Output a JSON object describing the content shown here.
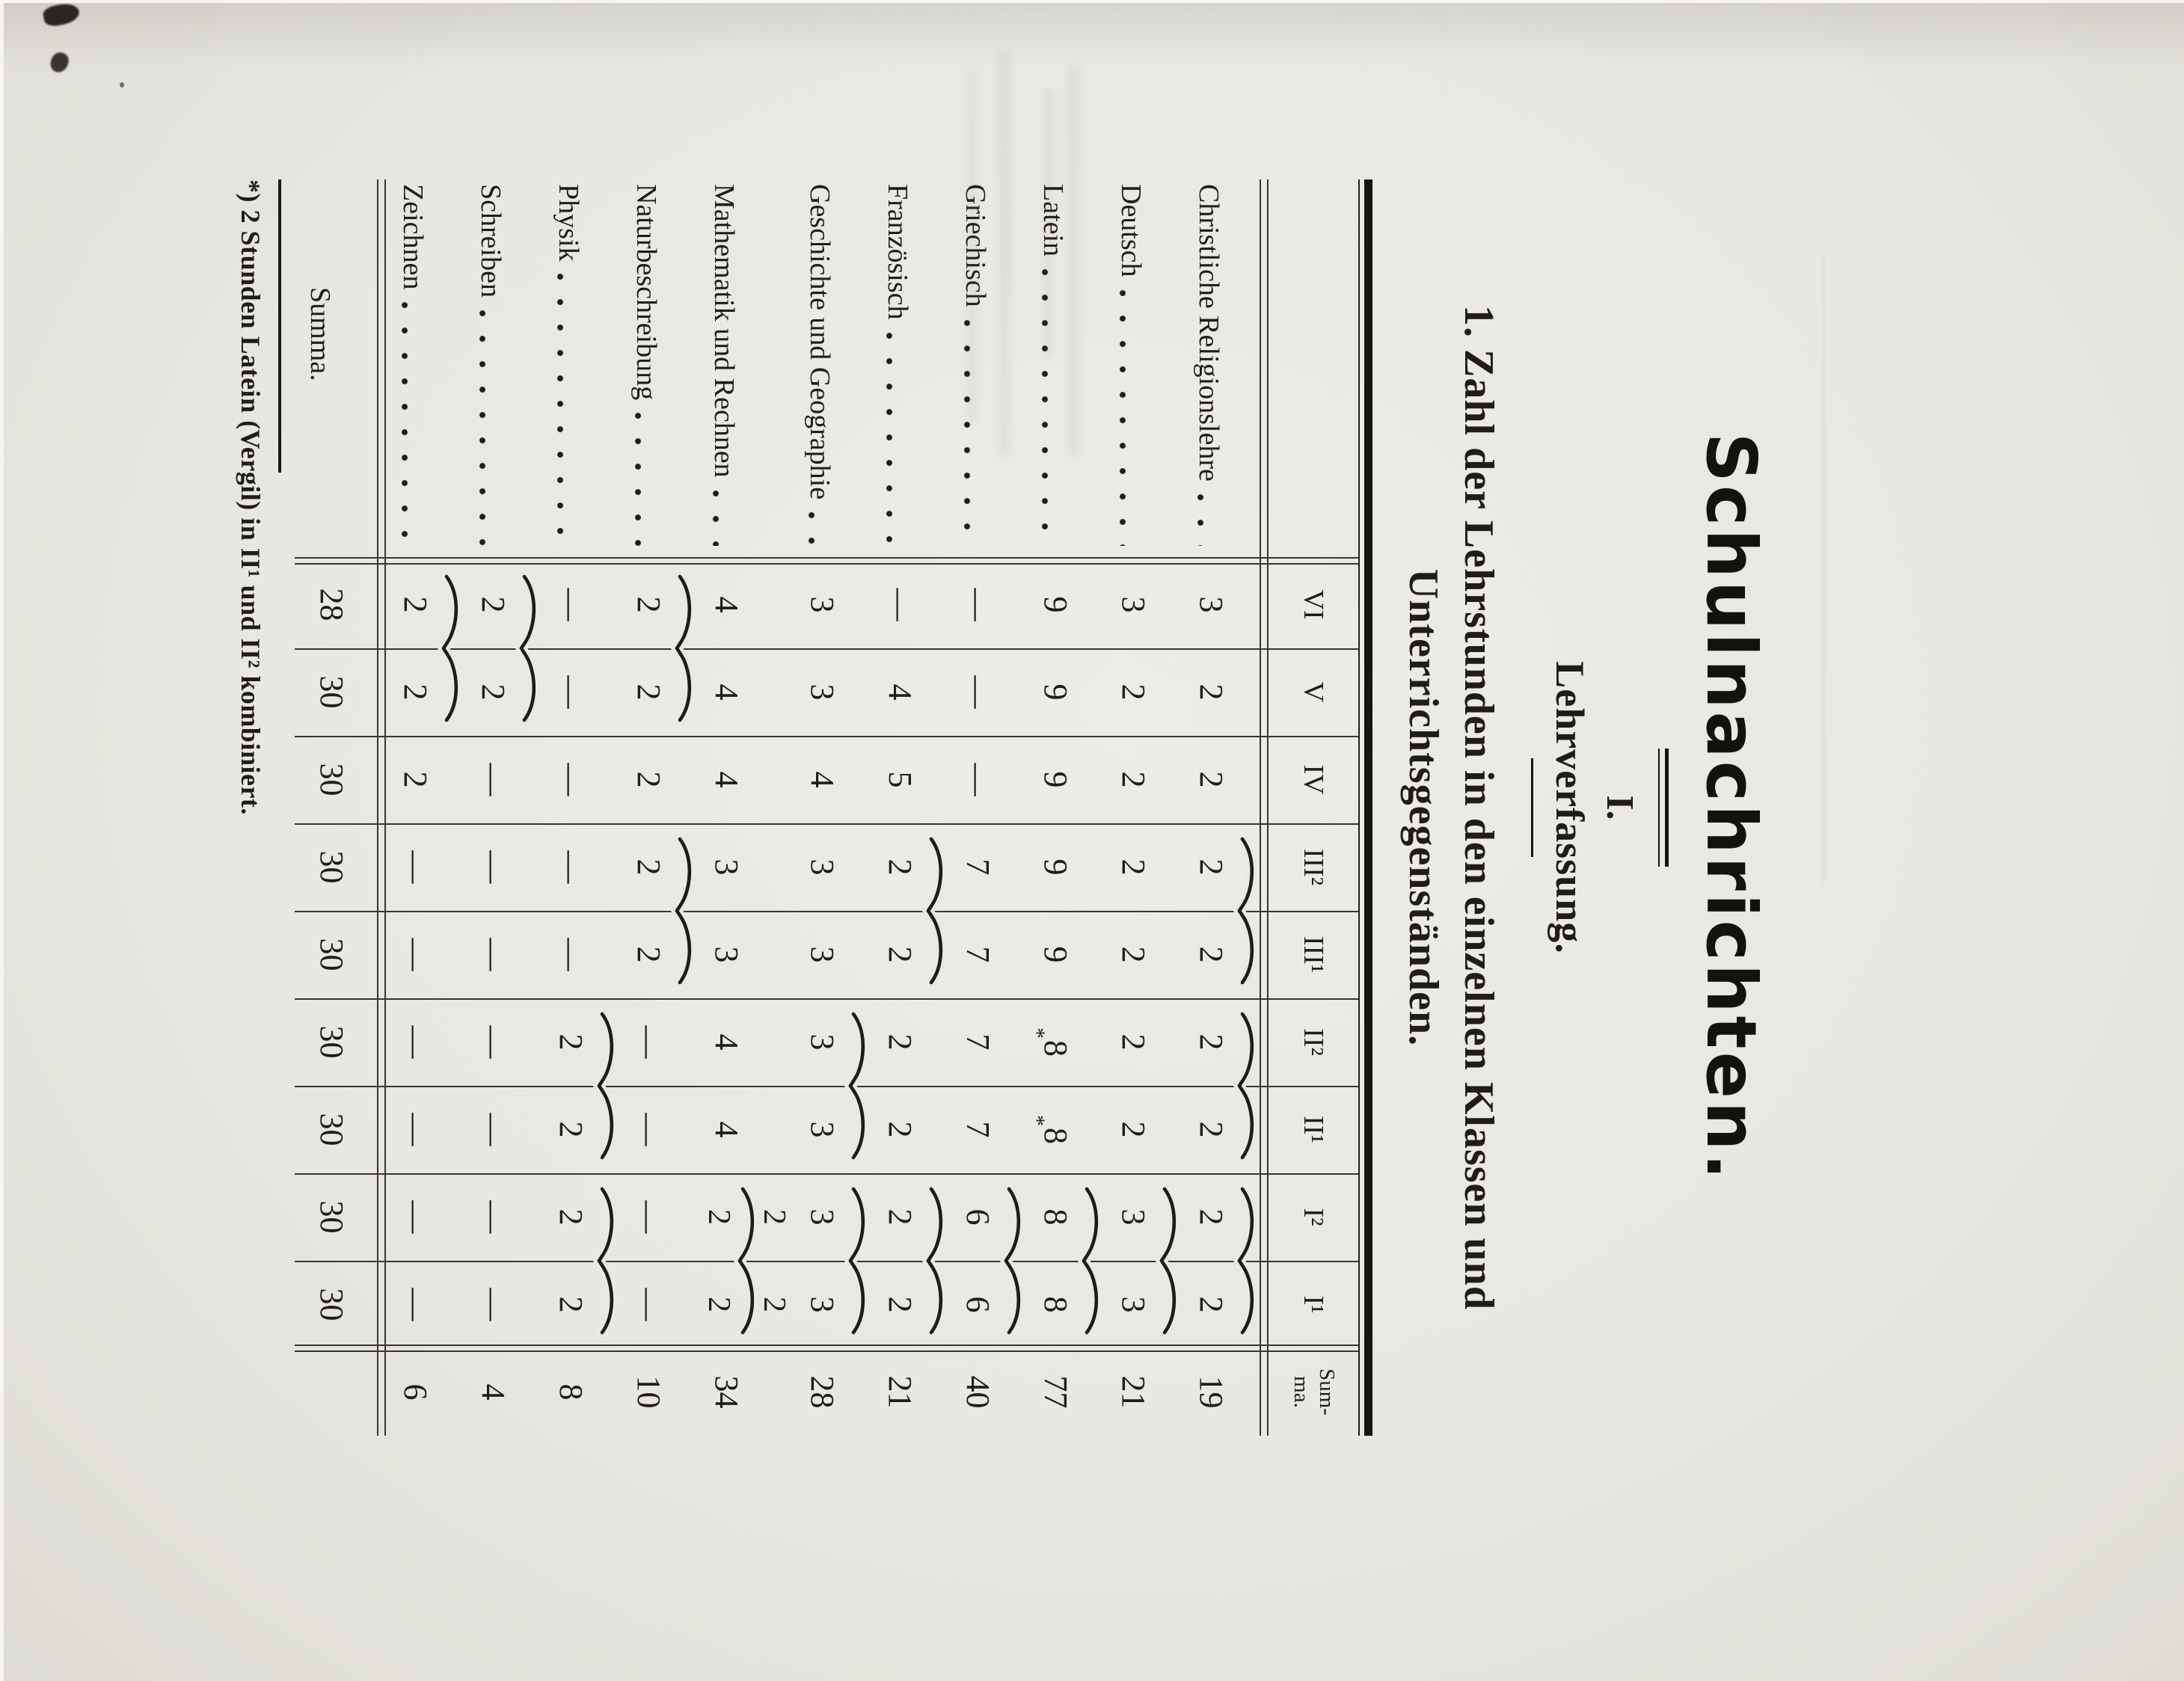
{
  "page": {
    "background_color": "#e8e7e1",
    "ink_color": "#201d17",
    "title": "Schulnachrichten.",
    "section_numeral": "I.",
    "section_title": "Lehrverfassung.",
    "heading_line1": "1. Zahl der Lehrstunden in den einzelnen Klassen und",
    "heading_line2": "Unterrichtsgegenständen.",
    "footnote": "*) 2 Stunden Latein (Vergil) in II¹ und II² kombiniert."
  },
  "table": {
    "class_columns": [
      "VI",
      "V",
      "IV",
      "III²",
      "III¹",
      "II²",
      "II¹",
      "I²",
      "I¹"
    ],
    "sum_column_header": [
      "Sum-",
      "ma."
    ],
    "rows": [
      {
        "label": "Christliche Religionslehre",
        "cells": [
          "3",
          "2",
          "2",
          "2",
          "2",
          "2",
          "2",
          "2",
          "2"
        ],
        "sum": "19",
        "braces": [
          [
            3,
            4
          ],
          [
            5,
            6
          ],
          [
            7,
            8
          ]
        ]
      },
      {
        "label": "Deutsch",
        "cells": [
          "3",
          "2",
          "2",
          "2",
          "2",
          "2",
          "2",
          "3",
          "3"
        ],
        "sum": "21",
        "braces": [
          [
            7,
            8
          ]
        ]
      },
      {
        "label": "Latein",
        "cells": [
          "9",
          "9",
          "9",
          "9",
          "9",
          "*8",
          "*8",
          "8",
          "8"
        ],
        "sum": "77",
        "braces": [
          [
            7,
            8
          ]
        ]
      },
      {
        "label": "Griechisch",
        "cells": [
          "—",
          "—",
          "—",
          "7",
          "7",
          "7",
          "7",
          "6",
          "6"
        ],
        "sum": "40",
        "braces": [
          [
            7,
            8
          ]
        ]
      },
      {
        "label": "Französisch",
        "cells": [
          "—",
          "4",
          "5",
          "2",
          "2",
          "2",
          "2",
          "2",
          "2"
        ],
        "sum": "21",
        "braces": [
          [
            3,
            4
          ],
          [
            7,
            8
          ]
        ]
      },
      {
        "label": "Geschichte und Geographie",
        "cells": [
          "3",
          "3",
          "4",
          "3",
          "3",
          "3",
          "3",
          "3",
          "3"
        ],
        "sum": "28",
        "braces": [
          [
            5,
            6
          ],
          [
            7,
            8
          ]
        ]
      },
      {
        "label": "Mathematik und Rechnen",
        "cells": [
          "4",
          "4",
          "4",
          "3",
          "3",
          "4",
          "4",
          [
            "2",
            "2"
          ],
          [
            "2",
            "2"
          ]
        ],
        "sum": "34",
        "braces": [],
        "mid_brace": [
          7,
          8
        ]
      },
      {
        "label": "Naturbeschreibung",
        "cells": [
          "2",
          "2",
          "2",
          "2",
          "2",
          "—",
          "—",
          "—",
          "—"
        ],
        "sum": "10",
        "braces": [
          [
            0,
            1
          ],
          [
            3,
            4
          ]
        ]
      },
      {
        "label": "Physik",
        "cells": [
          "—",
          "—",
          "—",
          "—",
          "—",
          "2",
          "2",
          "2",
          "2"
        ],
        "sum": "8",
        "braces": [
          [
            5,
            6
          ],
          [
            7,
            8
          ]
        ]
      },
      {
        "label": "Schreiben",
        "cells": [
          "2",
          "2",
          "—",
          "—",
          "—",
          "—",
          "—",
          "—",
          "—"
        ],
        "sum": "4",
        "braces": [
          [
            0,
            1
          ]
        ]
      },
      {
        "label": "Zeichnen",
        "cells": [
          "2",
          "2",
          "2",
          "—",
          "—",
          "—",
          "—",
          "—",
          "—"
        ],
        "sum": "6",
        "braces": [
          [
            0,
            1
          ]
        ]
      }
    ],
    "summary_row": {
      "label": "Summa.",
      "cells": [
        "28",
        "30",
        "30",
        "30",
        "30",
        "30",
        "30",
        "30",
        "30"
      ],
      "sum": ""
    }
  }
}
